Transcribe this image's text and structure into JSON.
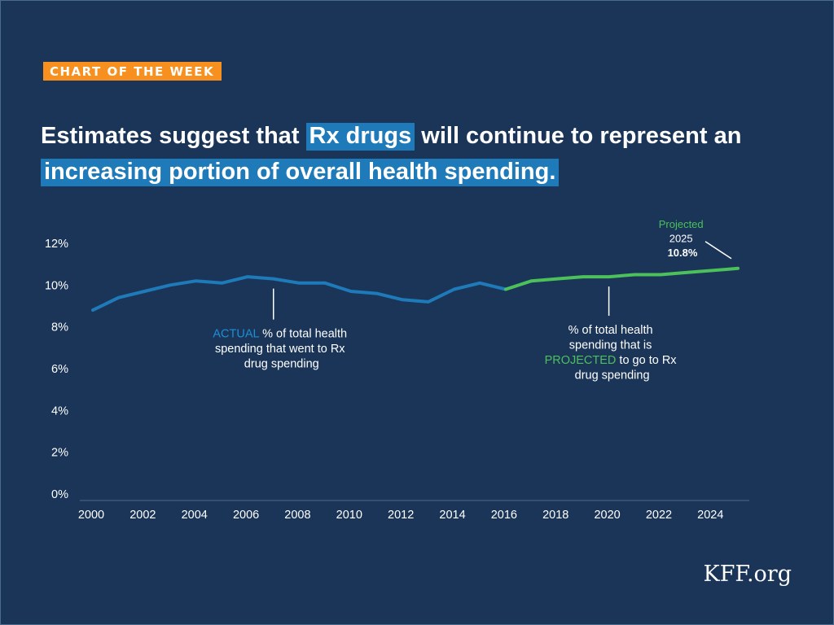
{
  "badge": "CHART OF THE WEEK",
  "headline": {
    "part1": "Estimates suggest that ",
    "highlight1": "Rx drugs",
    "part2": " will continue to represent an ",
    "highlight2": "increasing portion of overall health spending."
  },
  "colors": {
    "background": "#1a3558",
    "actual": "#1e7ab8",
    "projected": "#4cc05a",
    "badge": "#f7901e",
    "highlight": "#1e7ab8"
  },
  "chart_data": {
    "type": "line",
    "x": [
      2000,
      2001,
      2002,
      2003,
      2004,
      2005,
      2006,
      2007,
      2008,
      2009,
      2010,
      2011,
      2012,
      2013,
      2014,
      2015,
      2016,
      2017,
      2018,
      2019,
      2020,
      2021,
      2022,
      2023,
      2024,
      2025
    ],
    "series": [
      {
        "name": "ACTUAL",
        "x": [
          2000,
          2001,
          2002,
          2003,
          2004,
          2005,
          2006,
          2007,
          2008,
          2009,
          2010,
          2011,
          2012,
          2013,
          2014,
          2015,
          2016
        ],
        "values": [
          8.8,
          9.4,
          9.7,
          10.0,
          10.2,
          10.1,
          10.4,
          10.3,
          10.1,
          10.1,
          9.7,
          9.6,
          9.3,
          9.2,
          9.8,
          10.1,
          9.8
        ]
      },
      {
        "name": "PROJECTED",
        "x": [
          2016,
          2017,
          2018,
          2019,
          2020,
          2021,
          2022,
          2023,
          2024,
          2025
        ],
        "values": [
          9.8,
          10.2,
          10.3,
          10.4,
          10.4,
          10.5,
          10.5,
          10.6,
          10.7,
          10.8
        ]
      }
    ],
    "xlim": [
      2000,
      2025
    ],
    "ylim": [
      0,
      12
    ],
    "x_ticks": [
      "2000",
      "2002",
      "2004",
      "2006",
      "2008",
      "2010",
      "2012",
      "2014",
      "2016",
      "2018",
      "2020",
      "2022",
      "2024"
    ],
    "x_tick_values": [
      2000,
      2002,
      2004,
      2006,
      2008,
      2010,
      2012,
      2014,
      2016,
      2018,
      2020,
      2022,
      2024
    ],
    "y_ticks": [
      "0%",
      "2%",
      "4%",
      "6%",
      "8%",
      "10%",
      "12%"
    ],
    "y_tick_values": [
      0,
      2,
      4,
      6,
      8,
      10,
      12
    ],
    "grid": false,
    "annotations": {
      "actual": {
        "year": 2007,
        "keyword": "ACTUAL",
        "line1_rest": " % of total health",
        "line2": "spending that went  to Rx",
        "line3": "drug spending"
      },
      "projected": {
        "year": 2020,
        "line1": "% of total health",
        "line2": "spending that is",
        "keyword": "PROJECTED",
        "line3_rest": " to go to Rx",
        "line4": "drug spending"
      },
      "endpoint": {
        "label": "Projected",
        "year_label": "2025",
        "value_label": "10.8%"
      }
    }
  },
  "logo": "KFF.org"
}
